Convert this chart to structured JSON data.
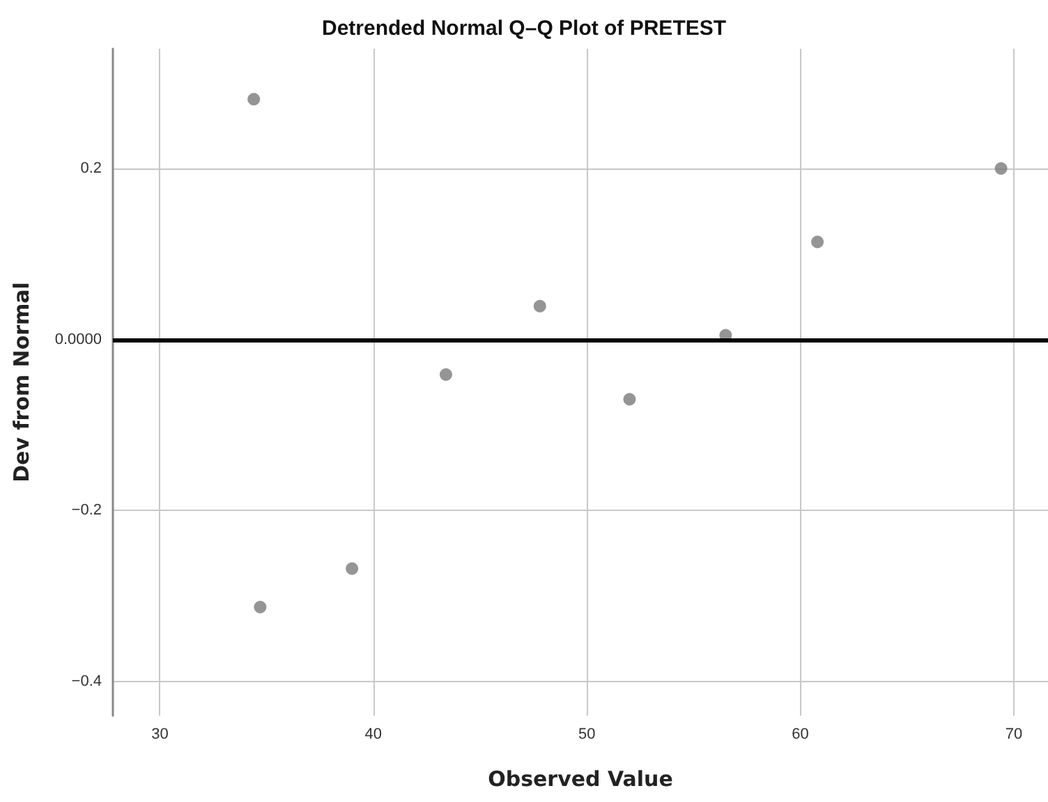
{
  "chart_data": {
    "type": "scatter",
    "title": "Detrended Normal Q–Q Plot of PRETEST",
    "xlabel": "Observed Value",
    "ylabel": "Dev from Normal",
    "x": [
      34.4,
      34.7,
      39.0,
      43.4,
      47.8,
      52.0,
      56.5,
      60.8,
      69.4
    ],
    "values": [
      0.281,
      -0.313,
      -0.268,
      -0.041,
      0.039,
      -0.07,
      0.005,
      0.114,
      0.2
    ],
    "color": "#7a7a7a",
    "marker": "circle",
    "xlim": [
      27.8,
      71.6
    ],
    "xticks": [
      30,
      40,
      50,
      60,
      70
    ],
    "ylim": [
      -0.44,
      0.34
    ],
    "yticks": [
      {
        "value": -0.4,
        "label": "−0.4"
      },
      {
        "value": -0.2,
        "label": "−0.2"
      },
      {
        "value": 0,
        "label": "0.0000"
      },
      {
        "value": 0.2,
        "label": "0.2"
      }
    ],
    "ref_lines": [
      {
        "axis": "y",
        "value": 0,
        "color": "#000000",
        "line_style": "solid"
      }
    ],
    "grid": true
  }
}
